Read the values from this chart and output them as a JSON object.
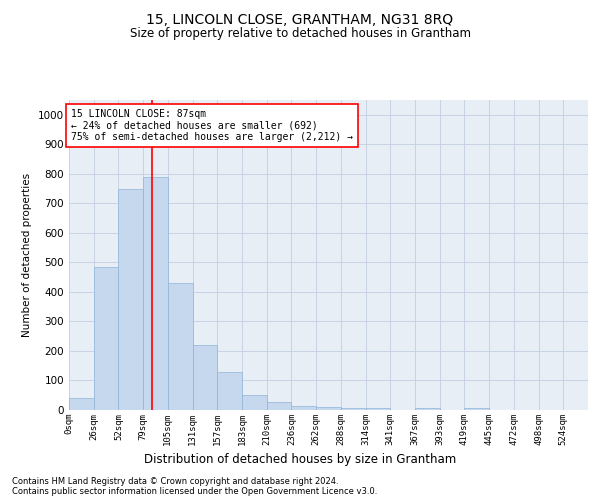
{
  "title": "15, LINCOLN CLOSE, GRANTHAM, NG31 8RQ",
  "subtitle": "Size of property relative to detached houses in Grantham",
  "xlabel": "Distribution of detached houses by size in Grantham",
  "ylabel": "Number of detached properties",
  "bar_values": [
    42,
    485,
    750,
    790,
    430,
    220,
    128,
    52,
    28,
    15,
    10,
    6,
    6,
    0,
    8,
    0,
    8,
    0,
    0,
    0,
    0
  ],
  "bar_labels": [
    "0sqm",
    "26sqm",
    "52sqm",
    "79sqm",
    "105sqm",
    "131sqm",
    "157sqm",
    "183sqm",
    "210sqm",
    "236sqm",
    "262sqm",
    "288sqm",
    "314sqm",
    "341sqm",
    "367sqm",
    "393sqm",
    "419sqm",
    "445sqm",
    "472sqm",
    "498sqm",
    "524sqm"
  ],
  "bar_color": "#c5d8ee",
  "bar_edge_color": "#8fb4d8",
  "grid_color": "#c8d4e4",
  "background_color": "#e8eef6",
  "property_sqm": 87,
  "annotation_line1": "15 LINCOLN CLOSE: 87sqm",
  "annotation_line2": "← 24% of detached houses are smaller (692)",
  "annotation_line3": "75% of semi-detached houses are larger (2,212) →",
  "ylim": [
    0,
    1050
  ],
  "yticks": [
    0,
    100,
    200,
    300,
    400,
    500,
    600,
    700,
    800,
    900,
    1000
  ],
  "footer_line1": "Contains HM Land Registry data © Crown copyright and database right 2024.",
  "footer_line2": "Contains public sector information licensed under the Open Government Licence v3.0."
}
